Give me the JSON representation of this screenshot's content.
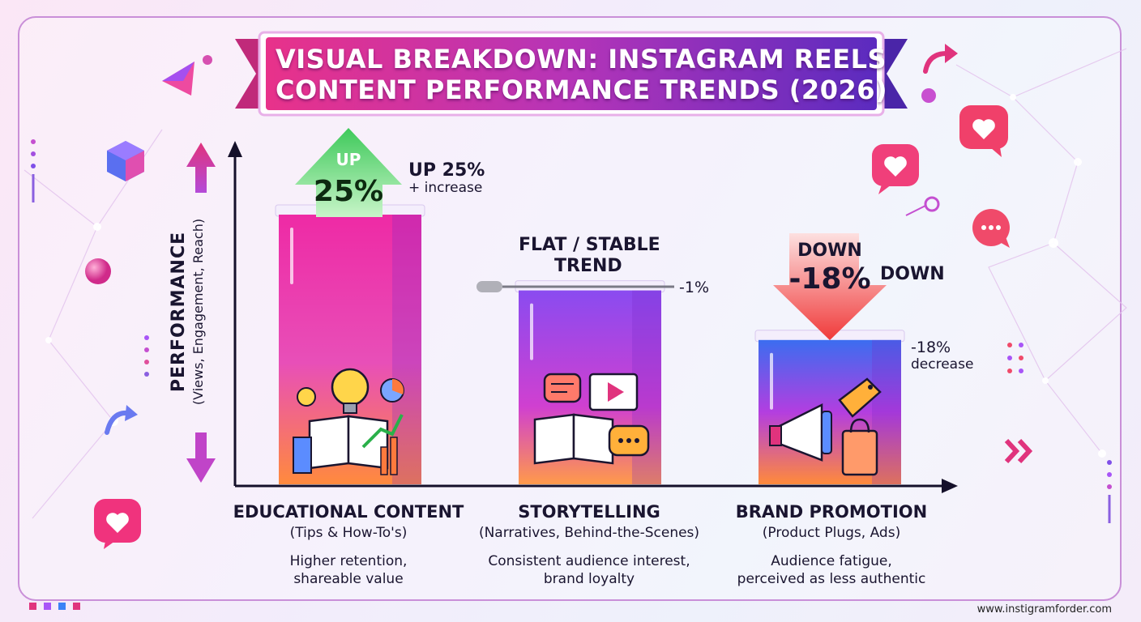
{
  "title": {
    "line1": "VISUAL BREAKDOWN: INSTAGRAM REELS",
    "line2": "CONTENT PERFORMANCE TRENDS (2026)"
  },
  "chart_data": {
    "type": "bar",
    "title": "VISUAL BREAKDOWN: INSTAGRAM REELS CONTENT PERFORMANCE TRENDS (2026)",
    "ylabel": "PERFORMANCE",
    "ylabel_sub": "(Views, Engagement, Reach)",
    "categories": [
      "EDUCATIONAL CONTENT",
      "STORYTELLING",
      "BRAND PROMOTION"
    ],
    "values": [
      25,
      -1,
      -18
    ],
    "unit": "%",
    "grid": false,
    "legend": "none"
  },
  "bars": [
    {
      "name": "EDUCATIONAL CONTENT",
      "subtitle": "(Tips & How-To's)",
      "description": [
        "Higher retention,",
        "shareable value"
      ],
      "change": 25,
      "arrow_top": "UP",
      "arrow_value": "25%",
      "side_line1": "UP 25%",
      "side_line2": "+ increase",
      "icons": [
        "lightbulb-icon",
        "book-icon",
        "growth-chart-icon",
        "pie-chart-icon"
      ],
      "colors": [
        "#ee2aa5",
        "#ff7a3d",
        "#9b3ff0"
      ]
    },
    {
      "name": "STORYTELLING",
      "subtitle": "(Narratives, Behind-the-Scenes)",
      "description": [
        "Consistent audience interest,",
        "brand loyalty"
      ],
      "change": -1,
      "flat_line1": "FLAT / STABLE",
      "flat_line2": "TREND",
      "side_value": "-1%",
      "icons": [
        "chat-bubble-icon",
        "video-play-icon",
        "open-book-icon",
        "ellipsis-bubble-icon"
      ],
      "colors": [
        "#8a4bf0",
        "#e038c4",
        "#ff9a4a"
      ]
    },
    {
      "name": "BRAND PROMOTION",
      "subtitle": "(Product Plugs, Ads)",
      "description": [
        "Audience fatigue,",
        "perceived as less authentic"
      ],
      "change": -18,
      "arrow_top": "DOWN",
      "arrow_value": "-18%",
      "arrow_side": "DOWN",
      "side_line1": "-18%",
      "side_line2": "decrease",
      "icons": [
        "megaphone-icon",
        "price-tag-icon",
        "shopping-bag-icon"
      ],
      "colors": [
        "#3b6df0",
        "#b33ee0",
        "#ff8a3a"
      ]
    }
  ],
  "footer": {
    "url": "www.instigramforder.com"
  },
  "colors": {
    "up_arrow": "#3ec95a",
    "down_arrow": "#f04a4a",
    "banner_start": "#e0338f",
    "banner_end": "#5a2bbf",
    "axis": "#15102a"
  }
}
